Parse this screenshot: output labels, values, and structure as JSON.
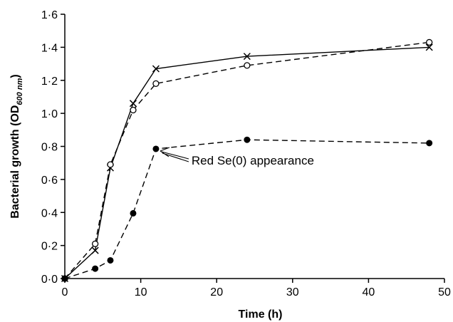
{
  "chart_data": {
    "type": "line",
    "xlabel": "Time (h)",
    "ylabel_main": "Bacterial growth (OD",
    "ylabel_sub": "600 nm",
    "ylabel_close": ")",
    "xlim": [
      0,
      50
    ],
    "ylim": [
      0,
      1.6
    ],
    "xticks": [
      0,
      10,
      20,
      30,
      40,
      50
    ],
    "xtick_labels": [
      "0",
      "10",
      "20",
      "30",
      "40",
      "50"
    ],
    "yticks": [
      0,
      0.2,
      0.4,
      0.6,
      0.8,
      1.0,
      1.2,
      1.4,
      1.6
    ],
    "ytick_labels": [
      "0·0",
      "0·2",
      "0·4",
      "0·6",
      "0·8",
      "1·0",
      "1·2",
      "1·4",
      "1·6"
    ],
    "grid": false,
    "series": [
      {
        "marker": "cross",
        "line": "solid",
        "x": [
          0,
          4,
          6,
          9,
          12,
          24,
          48
        ],
        "y": [
          0.0,
          0.17,
          0.67,
          1.06,
          1.27,
          1.345,
          1.4
        ]
      },
      {
        "marker": "open-circle",
        "line": "dashed",
        "x": [
          0,
          4,
          6,
          9,
          12,
          24,
          48
        ],
        "y": [
          0.0,
          0.21,
          0.69,
          1.02,
          1.18,
          1.29,
          1.43
        ]
      },
      {
        "marker": "filled-circle",
        "line": "dashed",
        "x": [
          0,
          4,
          6,
          9,
          12,
          24,
          48
        ],
        "y": [
          0.0,
          0.06,
          0.11,
          0.395,
          0.785,
          0.84,
          0.82
        ]
      }
    ],
    "annotation": {
      "text": "Red Se(0) appearance",
      "x": 12,
      "y": 0.785
    }
  }
}
